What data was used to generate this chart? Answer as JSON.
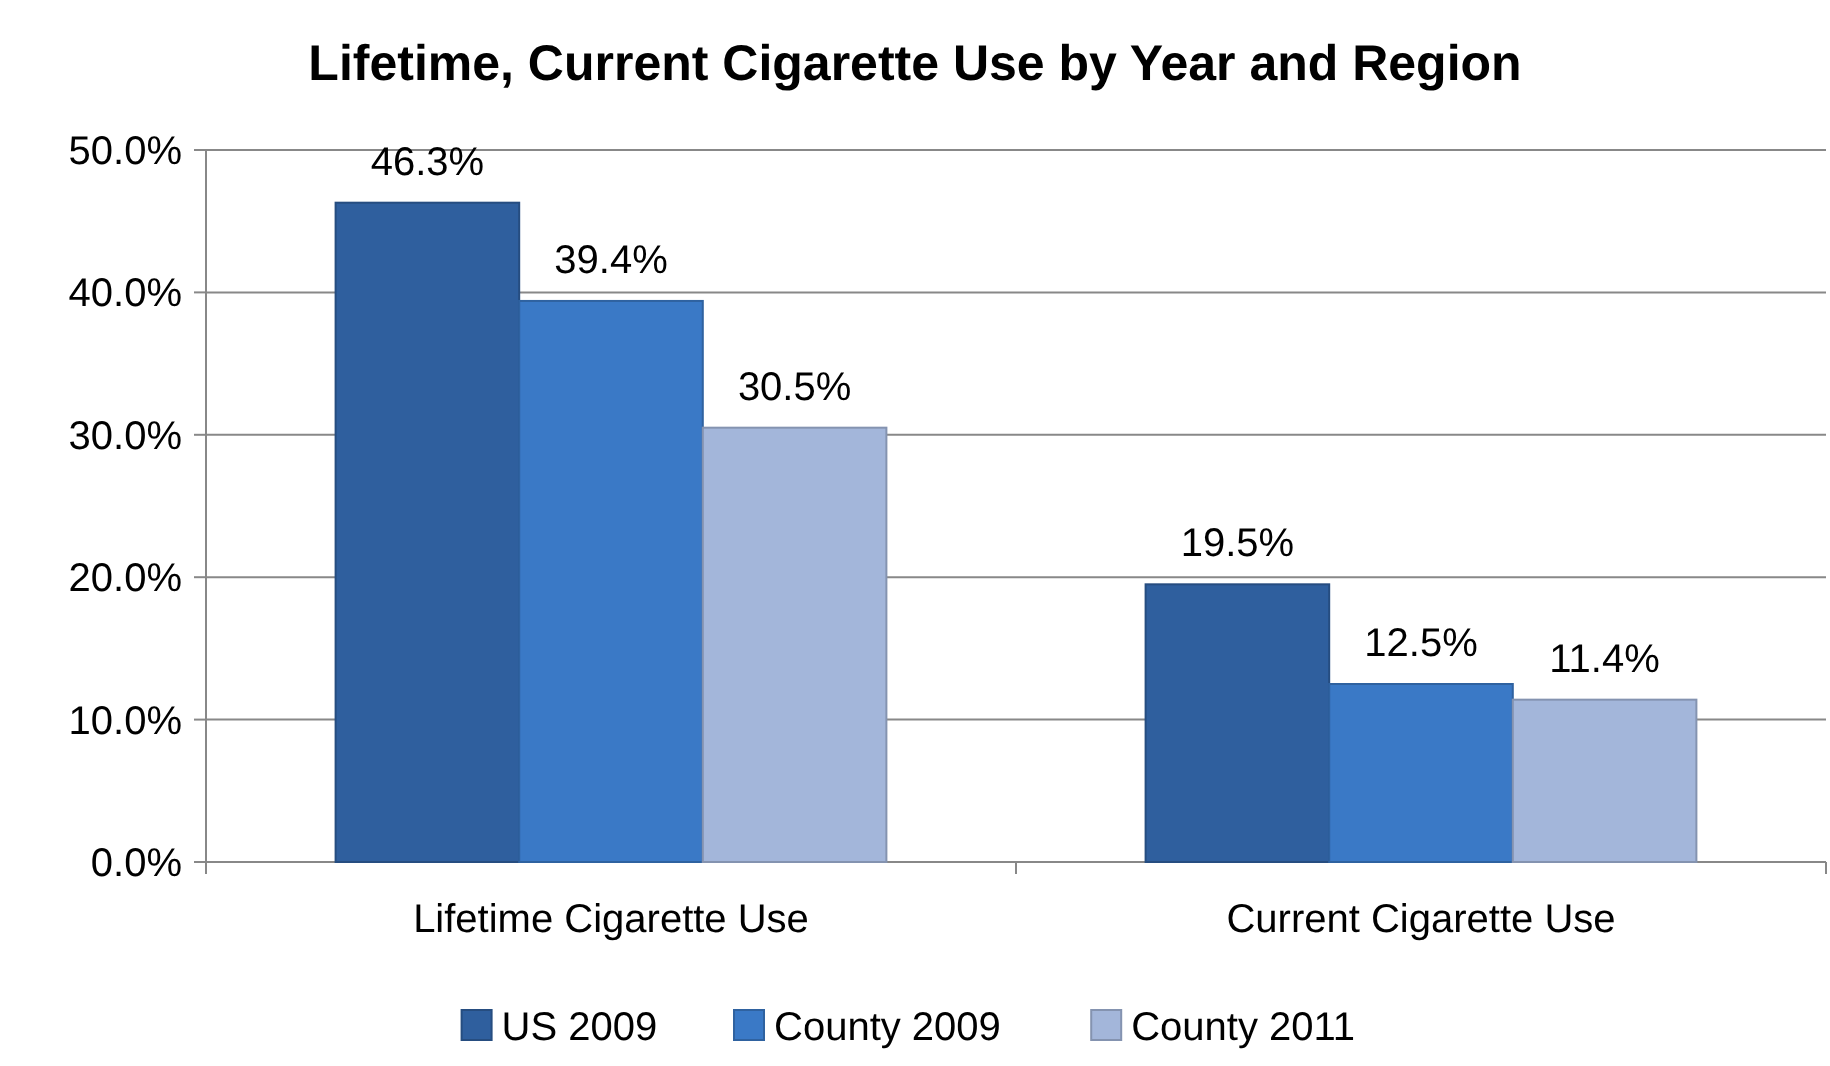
{
  "chart_data": {
    "type": "bar",
    "title": "Lifetime, Current Cigarette Use by Year and Region",
    "categories": [
      "Lifetime Cigarette Use",
      "Current Cigarette Use"
    ],
    "series": [
      {
        "name": "US 2009",
        "color": "#2f5f9e",
        "values": [
          46.3,
          19.5
        ],
        "value_labels": [
          "46.3%",
          "19.5%"
        ]
      },
      {
        "name": "County 2009",
        "color": "#3a79c6",
        "values": [
          39.4,
          12.5
        ],
        "value_labels": [
          "39.4%",
          "12.5%"
        ]
      },
      {
        "name": "County 2011",
        "color": "#a3b6da",
        "values": [
          30.5,
          11.4
        ],
        "value_labels": [
          "30.5%",
          "11.4%"
        ]
      }
    ],
    "ylim": [
      0,
      50
    ],
    "yticks": [
      {
        "value": 0,
        "label": "0.0%"
      },
      {
        "value": 10,
        "label": "10.0%"
      },
      {
        "value": 20,
        "label": "20.0%"
      },
      {
        "value": 30,
        "label": "30.0%"
      },
      {
        "value": 40,
        "label": "40.0%"
      },
      {
        "value": 50,
        "label": "50.0%"
      }
    ],
    "grid": "y",
    "legend": "bottom"
  }
}
